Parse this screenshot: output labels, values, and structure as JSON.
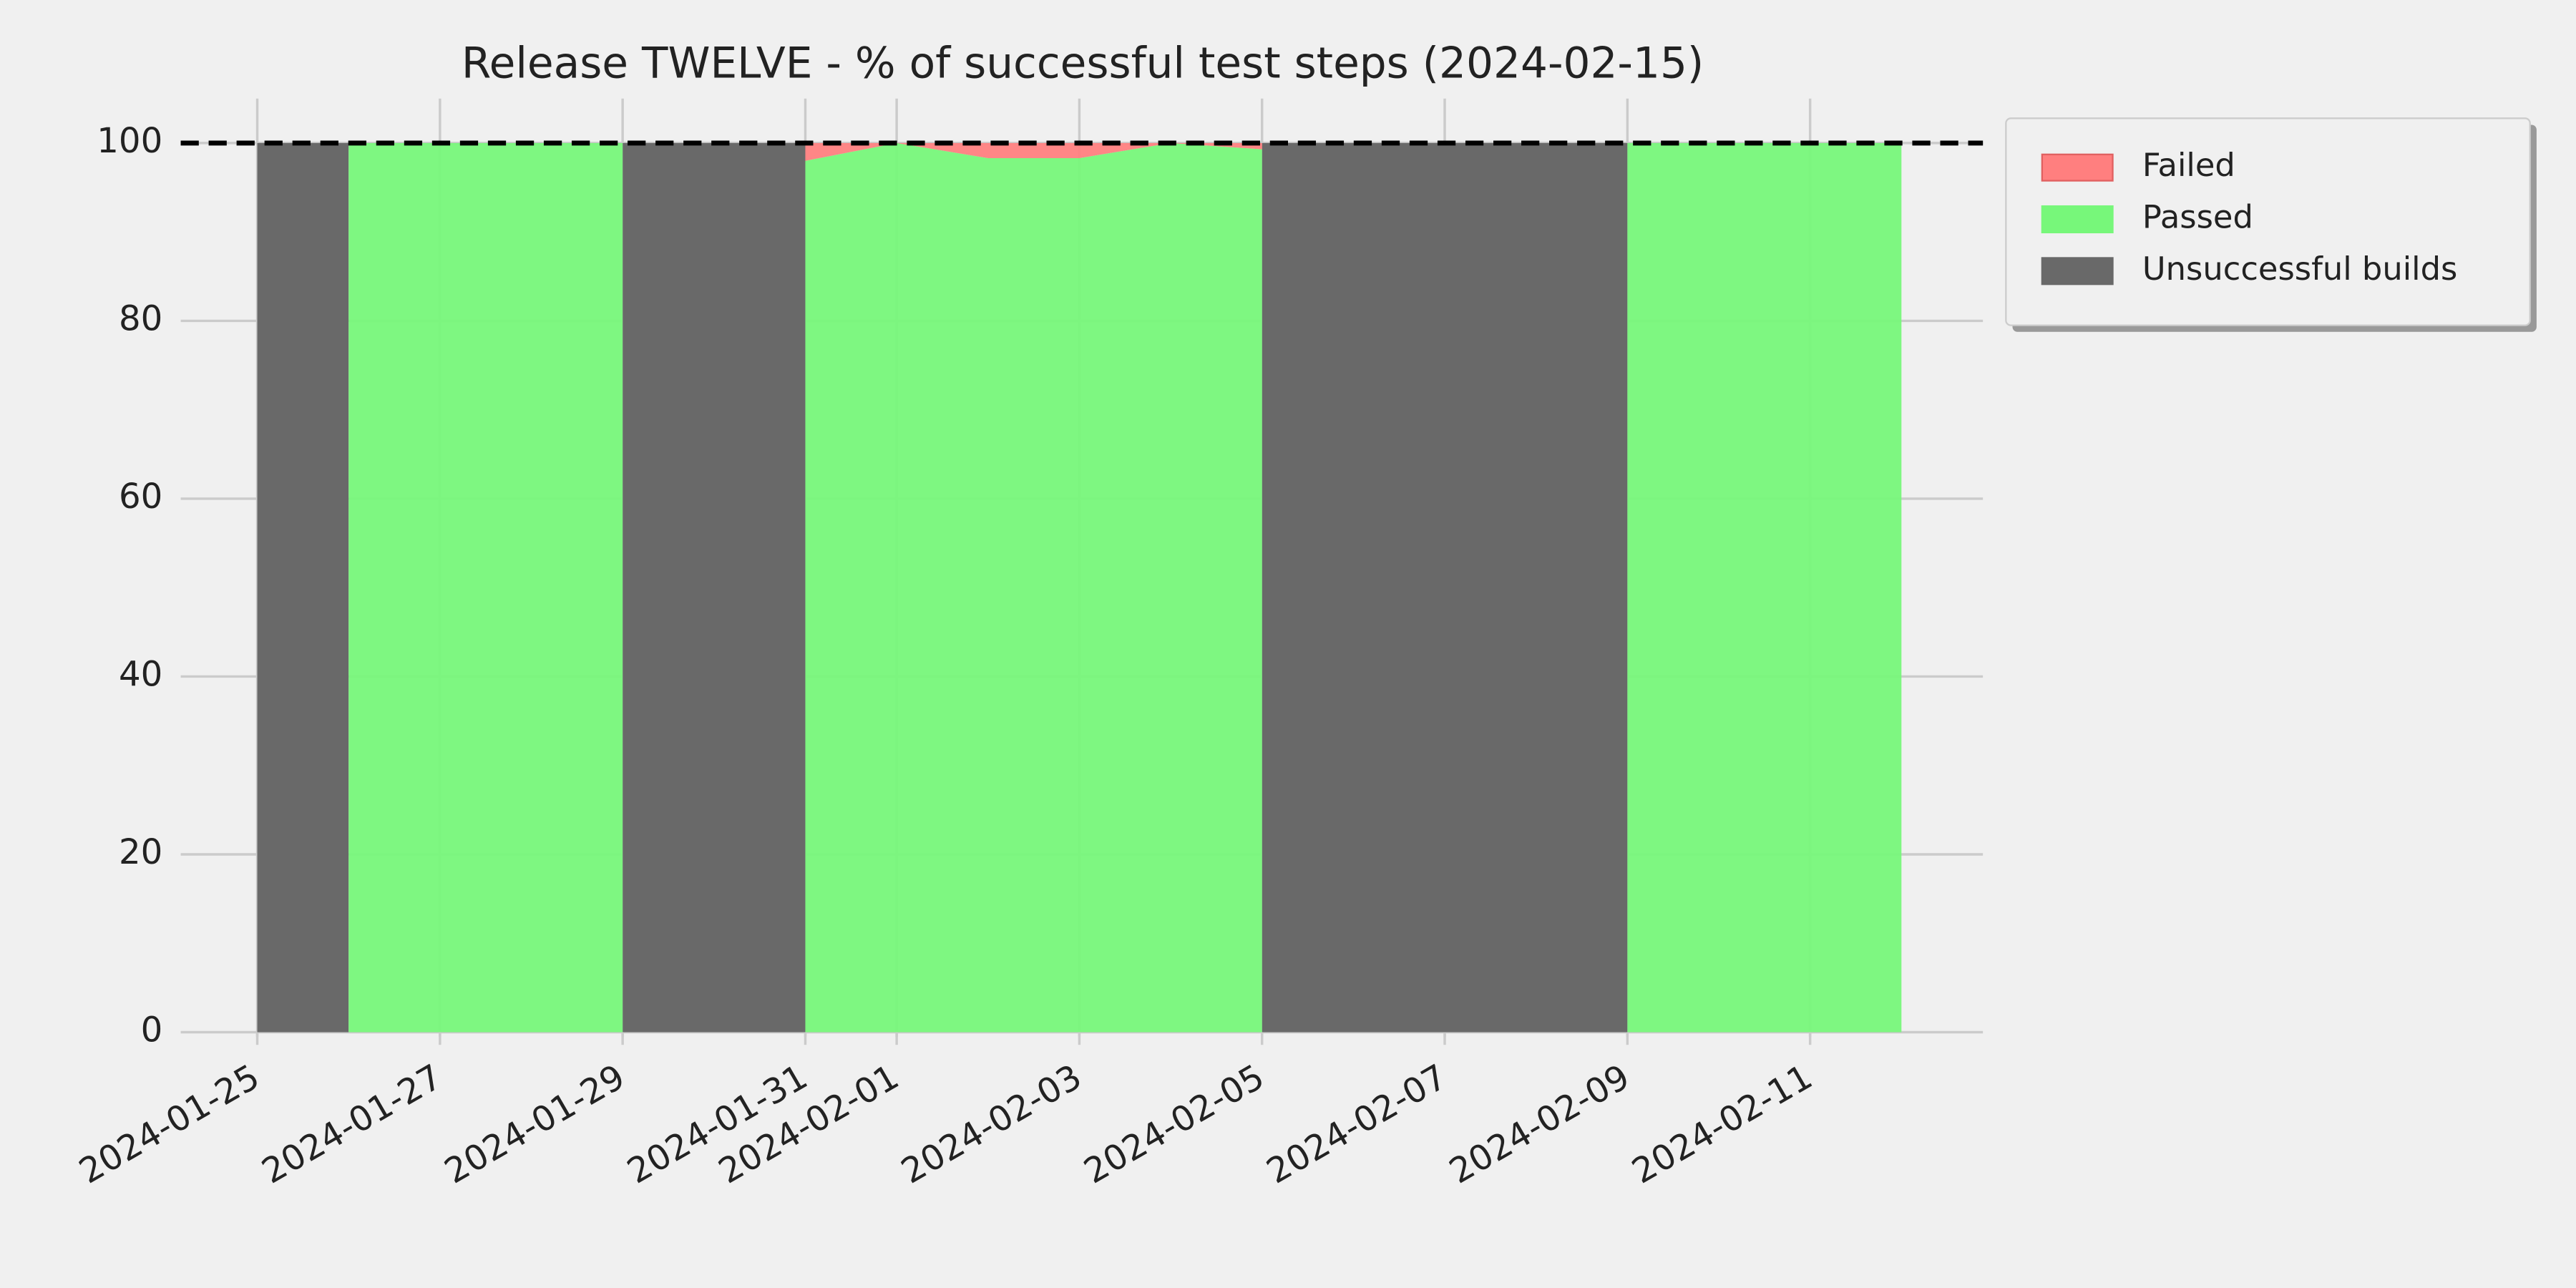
{
  "chart_data": {
    "type": "stacked_area",
    "title": "Release TWELVE - % of successful test steps (2024-02-15)",
    "x": [
      "2024-01-25",
      "2024-01-26",
      "2024-01-26",
      "2024-01-29",
      "2024-01-29",
      "2024-01-31",
      "2024-01-31",
      "2024-02-01",
      "2024-02-02",
      "2024-02-03",
      "2024-02-04",
      "2024-02-05",
      "2024-02-05",
      "2024-02-09",
      "2024-02-09",
      "2024-02-12"
    ],
    "series": [
      {
        "name": "Unsuccessful builds",
        "color": "#696969",
        "values": [
          100,
          100,
          0,
          0,
          100,
          100,
          0,
          0,
          0,
          0,
          0,
          0,
          100,
          100,
          0,
          0
        ]
      },
      {
        "name": "Passed",
        "color": "#77f77a",
        "values": [
          0,
          0,
          100,
          100,
          0,
          0,
          98,
          100,
          98.3,
          98.3,
          100,
          99.3,
          0,
          0,
          100,
          100
        ]
      },
      {
        "name": "Failed",
        "color": "#ff7f7f",
        "values": [
          0,
          0,
          0,
          0,
          0,
          0,
          2,
          0,
          1.7,
          1.7,
          0,
          0.7,
          0,
          0,
          0,
          0
        ]
      }
    ],
    "reference_line": 100,
    "xlim": [
      "2024-01-24",
      "2024-02-13"
    ],
    "xticks": [
      "2024-01-25",
      "2024-01-27",
      "2024-01-29",
      "2024-01-31",
      "2024-02-01",
      "2024-02-03",
      "2024-02-05",
      "2024-02-07",
      "2024-02-09",
      "2024-02-11"
    ],
    "ylim": [
      -0.5,
      105
    ],
    "yticks": [
      0,
      20,
      40,
      60,
      80,
      100
    ],
    "grid": true,
    "legend": "outside-upper-right"
  }
}
